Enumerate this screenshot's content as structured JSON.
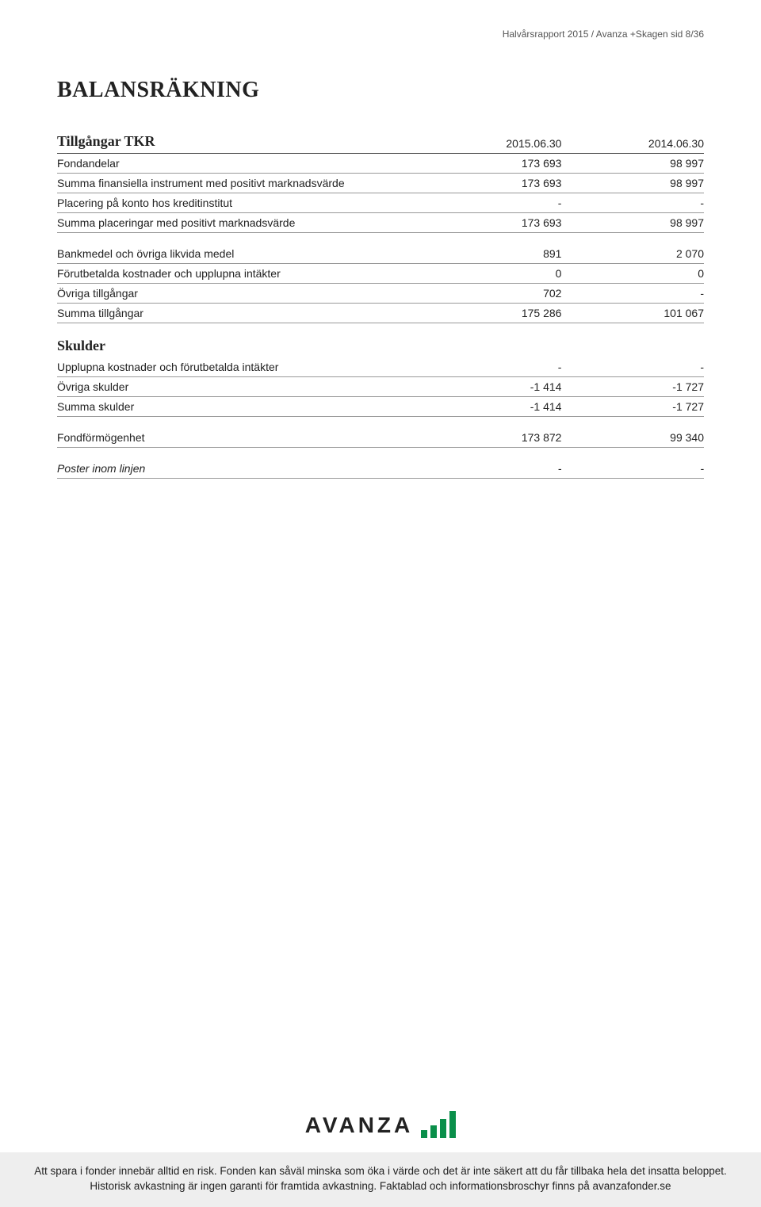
{
  "header": {
    "line": "Halvårsrapport 2015 / Avanza +Skagen   sid 8/36"
  },
  "title": "BALANSRÄKNING",
  "tillgangar": {
    "heading": "Tillgångar TKR",
    "date1": "2015.06.30",
    "date2": "2014.06.30",
    "rows": [
      {
        "label": "Fondandelar",
        "v1": "173 693",
        "v2": "98 997"
      },
      {
        "label": "Summa finansiella instrument med positivt marknadsvärde",
        "v1": "173 693",
        "v2": "98 997"
      },
      {
        "label": "Placering på konto hos kreditinstitut",
        "v1": "-",
        "v2": "-"
      },
      {
        "label": "Summa placeringar med positivt marknadsvärde",
        "v1": "173 693",
        "v2": "98 997"
      }
    ],
    "rows2": [
      {
        "label": "Bankmedel och övriga likvida medel",
        "v1": "891",
        "v2": "2 070"
      },
      {
        "label": "Förutbetalda kostnader och upplupna intäkter",
        "v1": "0",
        "v2": "0"
      },
      {
        "label": "Övriga tillgångar",
        "v1": "702",
        "v2": "-"
      },
      {
        "label": "Summa tillgångar",
        "v1": "175 286",
        "v2": "101 067"
      }
    ]
  },
  "skulder": {
    "heading": "Skulder",
    "rows": [
      {
        "label": "Upplupna kostnader och förutbetalda intäkter",
        "v1": "-",
        "v2": "-"
      },
      {
        "label": "Övriga skulder",
        "v1": "-1 414",
        "v2": "-1 727"
      },
      {
        "label": "Summa skulder",
        "v1": "-1 414",
        "v2": "-1 727"
      }
    ]
  },
  "fond": {
    "label": "Fondförmögenhet",
    "v1": "173 872",
    "v2": "99 340"
  },
  "poster": {
    "label": "Poster inom linjen",
    "v1": "-",
    "v2": "-"
  },
  "logo": {
    "text": "AVANZA",
    "bar_color": "#0a8f4a"
  },
  "footnote": "Att spara i fonder innebär alltid en risk. Fonden kan såväl minska som öka i värde och det är inte säkert att du får tillbaka hela det insatta beloppet. Historisk avkastning är ingen garanti för framtida avkastning. Faktablad och informationsbroschyr finns på avanzafonder.se"
}
